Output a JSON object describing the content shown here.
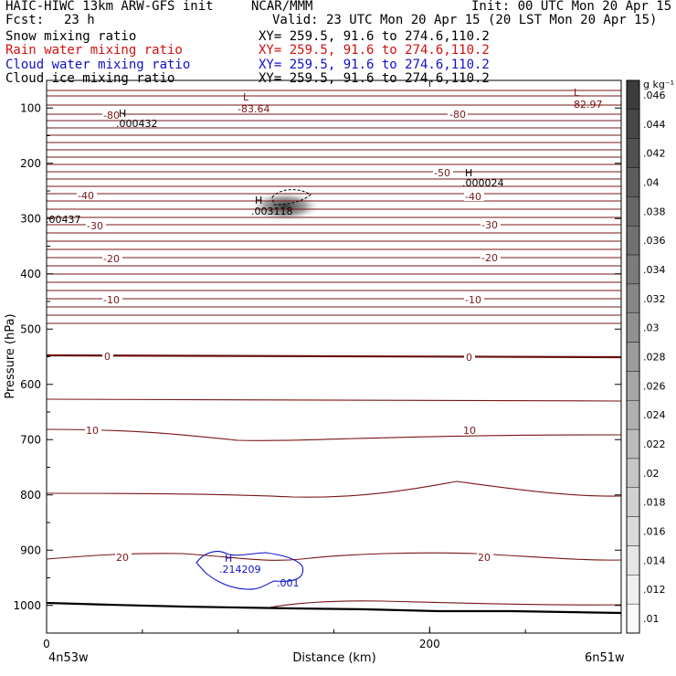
{
  "header": {
    "model": "HAIC-HIWC 13km ARW-GFS init",
    "org": "NCAR/MMM",
    "init": "Init: 00 UTC Mon 20 Apr 15",
    "fcst_label": "Fcst:",
    "fcst_value": "23 h",
    "valid": "Valid: 23 UTC Mon 20 Apr 15 (20 LST Mon 20 Apr 15)",
    "fields": [
      {
        "name": "Snow mixing ratio",
        "xy": "XY= 259.5, 91.6 to 274.6,110.2",
        "color": "#000000"
      },
      {
        "name": "Rain water mixing ratio",
        "xy": "XY= 259.5, 91.6 to 274.6,110.2",
        "color": "#d01010"
      },
      {
        "name": "Cloud water mixing ratio",
        "xy": "XY= 259.5, 91.6 to 274.6,110.2",
        "color": "#1010c8"
      },
      {
        "name": "Cloud ice mixing ratio",
        "xy": "XY= 259.5, 91.6 to 274.6,110.2",
        "color": "#000000"
      }
    ]
  },
  "chart_data": {
    "type": "contour",
    "xlabel": "Distance (km)",
    "ylabel": "Pressure (hPa)",
    "x_ticks": [
      0,
      200
    ],
    "x_range": [
      0,
      300
    ],
    "y_ticks": [
      100,
      200,
      300,
      400,
      500,
      600,
      700,
      800,
      900,
      1000
    ],
    "y_range": [
      50,
      1050
    ],
    "left_location": "4n53w",
    "right_location": "6n51w",
    "colorbar": {
      "unit": "g kg⁻¹",
      "ticks": [
        ".046",
        ".044",
        ".042",
        ".04",
        ".038",
        ".036",
        ".034",
        ".032",
        ".03",
        ".028",
        ".026",
        ".024",
        ".022",
        ".02",
        ".018",
        ".016",
        ".014",
        ".012",
        ".01"
      ]
    },
    "temperature_labels": [
      "-80",
      "-80",
      "-50",
      "-40",
      "-40",
      "-30",
      "-30",
      "-20",
      "-20",
      "-10",
      "-10",
      "0",
      "0",
      "10",
      "10",
      "20",
      "20"
    ],
    "extrema": [
      {
        "type": "L",
        "value": "-83.64",
        "color": "#7a1515"
      },
      {
        "type": "L",
        "value": "-82.97",
        "color": "#7a1515"
      },
      {
        "type": "H",
        "value": ".000432",
        "color": "#000000"
      },
      {
        "type": "H",
        "value": ".000024",
        "color": "#000000"
      },
      {
        "type": "H",
        "value": ".003118",
        "color": "#000000"
      },
      {
        "type": "H",
        "value": ".214209",
        "color": "#1010c8"
      }
    ],
    "edge_labels": [
      ".00437"
    ],
    "cloud_water_contour_label": ".001",
    "temperature_color": "#7a1515",
    "zero_line_color": "#6a0d0d",
    "terrain_color": "#000000"
  }
}
